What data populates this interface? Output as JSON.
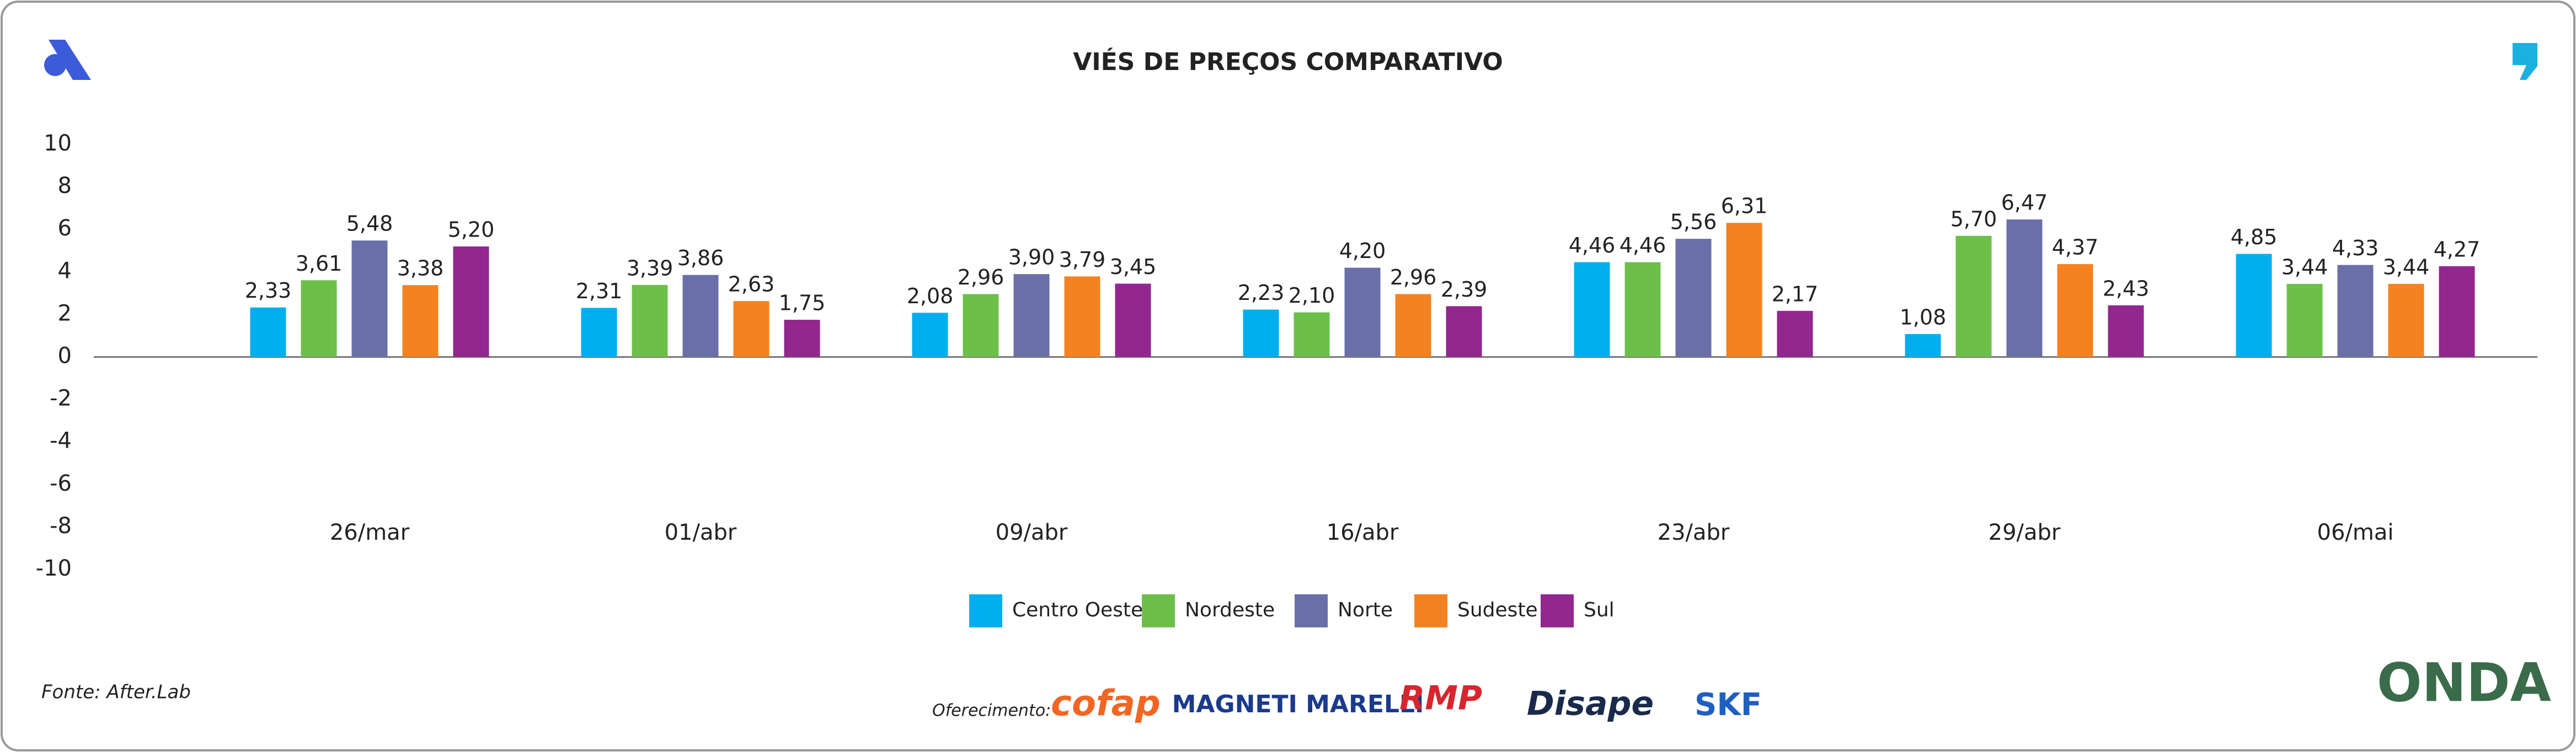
{
  "chart_data": {
    "type": "bar",
    "title": "VIÉS DE PREÇOS COMPARATIVO",
    "categories": [
      "26/mar",
      "01/abr",
      "09/abr",
      "16/abr",
      "23/abr",
      "29/abr",
      "06/mai"
    ],
    "series": [
      {
        "name": "Centro Oeste",
        "color": "#00aeef",
        "values": [
          2.33,
          2.31,
          2.08,
          2.23,
          4.46,
          1.08,
          4.85
        ],
        "value_labels": [
          "2,33",
          "2,31",
          "2,08",
          "2,23",
          "4,46",
          "1,08",
          "4,85"
        ]
      },
      {
        "name": "Nordeste",
        "color": "#6cc04a",
        "values": [
          3.61,
          3.39,
          2.96,
          2.1,
          4.46,
          5.7,
          3.44
        ],
        "value_labels": [
          "3,61",
          "3,39",
          "2,96",
          "2,10",
          "4,46",
          "5,70",
          "3,44"
        ]
      },
      {
        "name": "Norte",
        "color": "#6a6fa8",
        "values": [
          5.48,
          3.86,
          3.9,
          4.2,
          5.56,
          6.47,
          4.33
        ],
        "value_labels": [
          "5,48",
          "3,86",
          "3,90",
          "4,20",
          "5,56",
          "6,47",
          "4,33"
        ]
      },
      {
        "name": "Sudeste",
        "color": "#f58220",
        "values": [
          3.38,
          2.63,
          3.79,
          2.96,
          6.31,
          4.37,
          3.44
        ],
        "value_labels": [
          "3,38",
          "2,63",
          "3,79",
          "2,96",
          "6,31",
          "4,37",
          "3,44"
        ]
      },
      {
        "name": "Sul",
        "color": "#92278f",
        "values": [
          5.2,
          1.75,
          3.45,
          2.39,
          2.17,
          2.43,
          4.27
        ],
        "value_labels": [
          "5,20",
          "1,75",
          "3,45",
          "2,39",
          "2,17",
          "2,43",
          "4,27"
        ]
      }
    ],
    "ylim": [
      -10,
      10
    ],
    "yticks": [
      -10,
      -8,
      -6,
      -4,
      -2,
      0,
      2,
      4,
      6,
      8,
      10
    ],
    "grid": false,
    "legend": "bottom"
  },
  "footer": {
    "source": "Fonte: After.Lab",
    "sponsor_label": "Oferecimento:",
    "sponsors": [
      "cofap",
      "MAGNETI MARELLI",
      "RMP",
      "Disape",
      "SKF"
    ],
    "brand": "ONDA"
  }
}
